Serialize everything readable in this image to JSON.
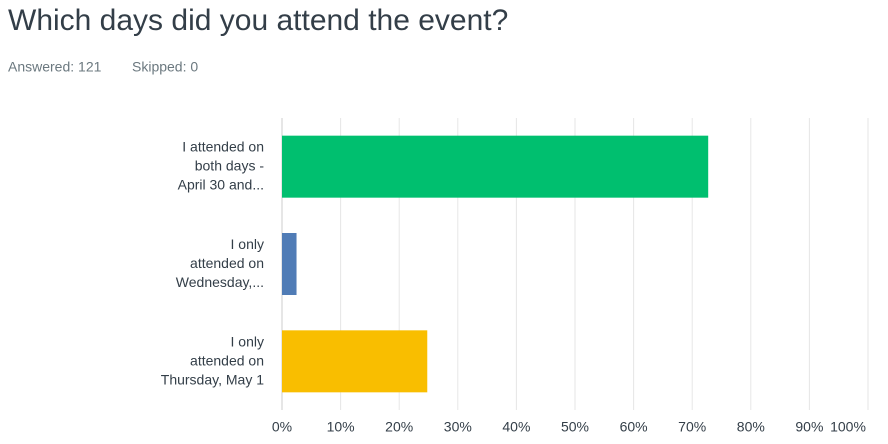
{
  "chart_data": {
    "type": "hbar",
    "title": "Which days did you attend the event?",
    "answered": "Answered: 121",
    "skipped": "Skipped: 0",
    "categories": [
      "I attended on\nboth days -\nApril 30 and...",
      "I only\nattended on\nWednesday,...",
      "I only\nattended on\nThursday, May 1"
    ],
    "values": [
      72.73,
      2.48,
      24.79
    ],
    "colors": [
      "#00bf6f",
      "#507cb6",
      "#f9be00"
    ],
    "xlim": [
      0,
      100
    ],
    "xticks": [
      {
        "value": 0,
        "label": "0%"
      },
      {
        "value": 10,
        "label": "10%"
      },
      {
        "value": 20,
        "label": "20%"
      },
      {
        "value": 30,
        "label": "30%"
      },
      {
        "value": 40,
        "label": "40%"
      },
      {
        "value": 50,
        "label": "50%"
      },
      {
        "value": 60,
        "label": "60%"
      },
      {
        "value": 70,
        "label": "70%"
      },
      {
        "value": 80,
        "label": "80%"
      },
      {
        "value": 90,
        "label": "90%"
      },
      {
        "value": 100,
        "label": "100%"
      }
    ],
    "grid": true
  }
}
